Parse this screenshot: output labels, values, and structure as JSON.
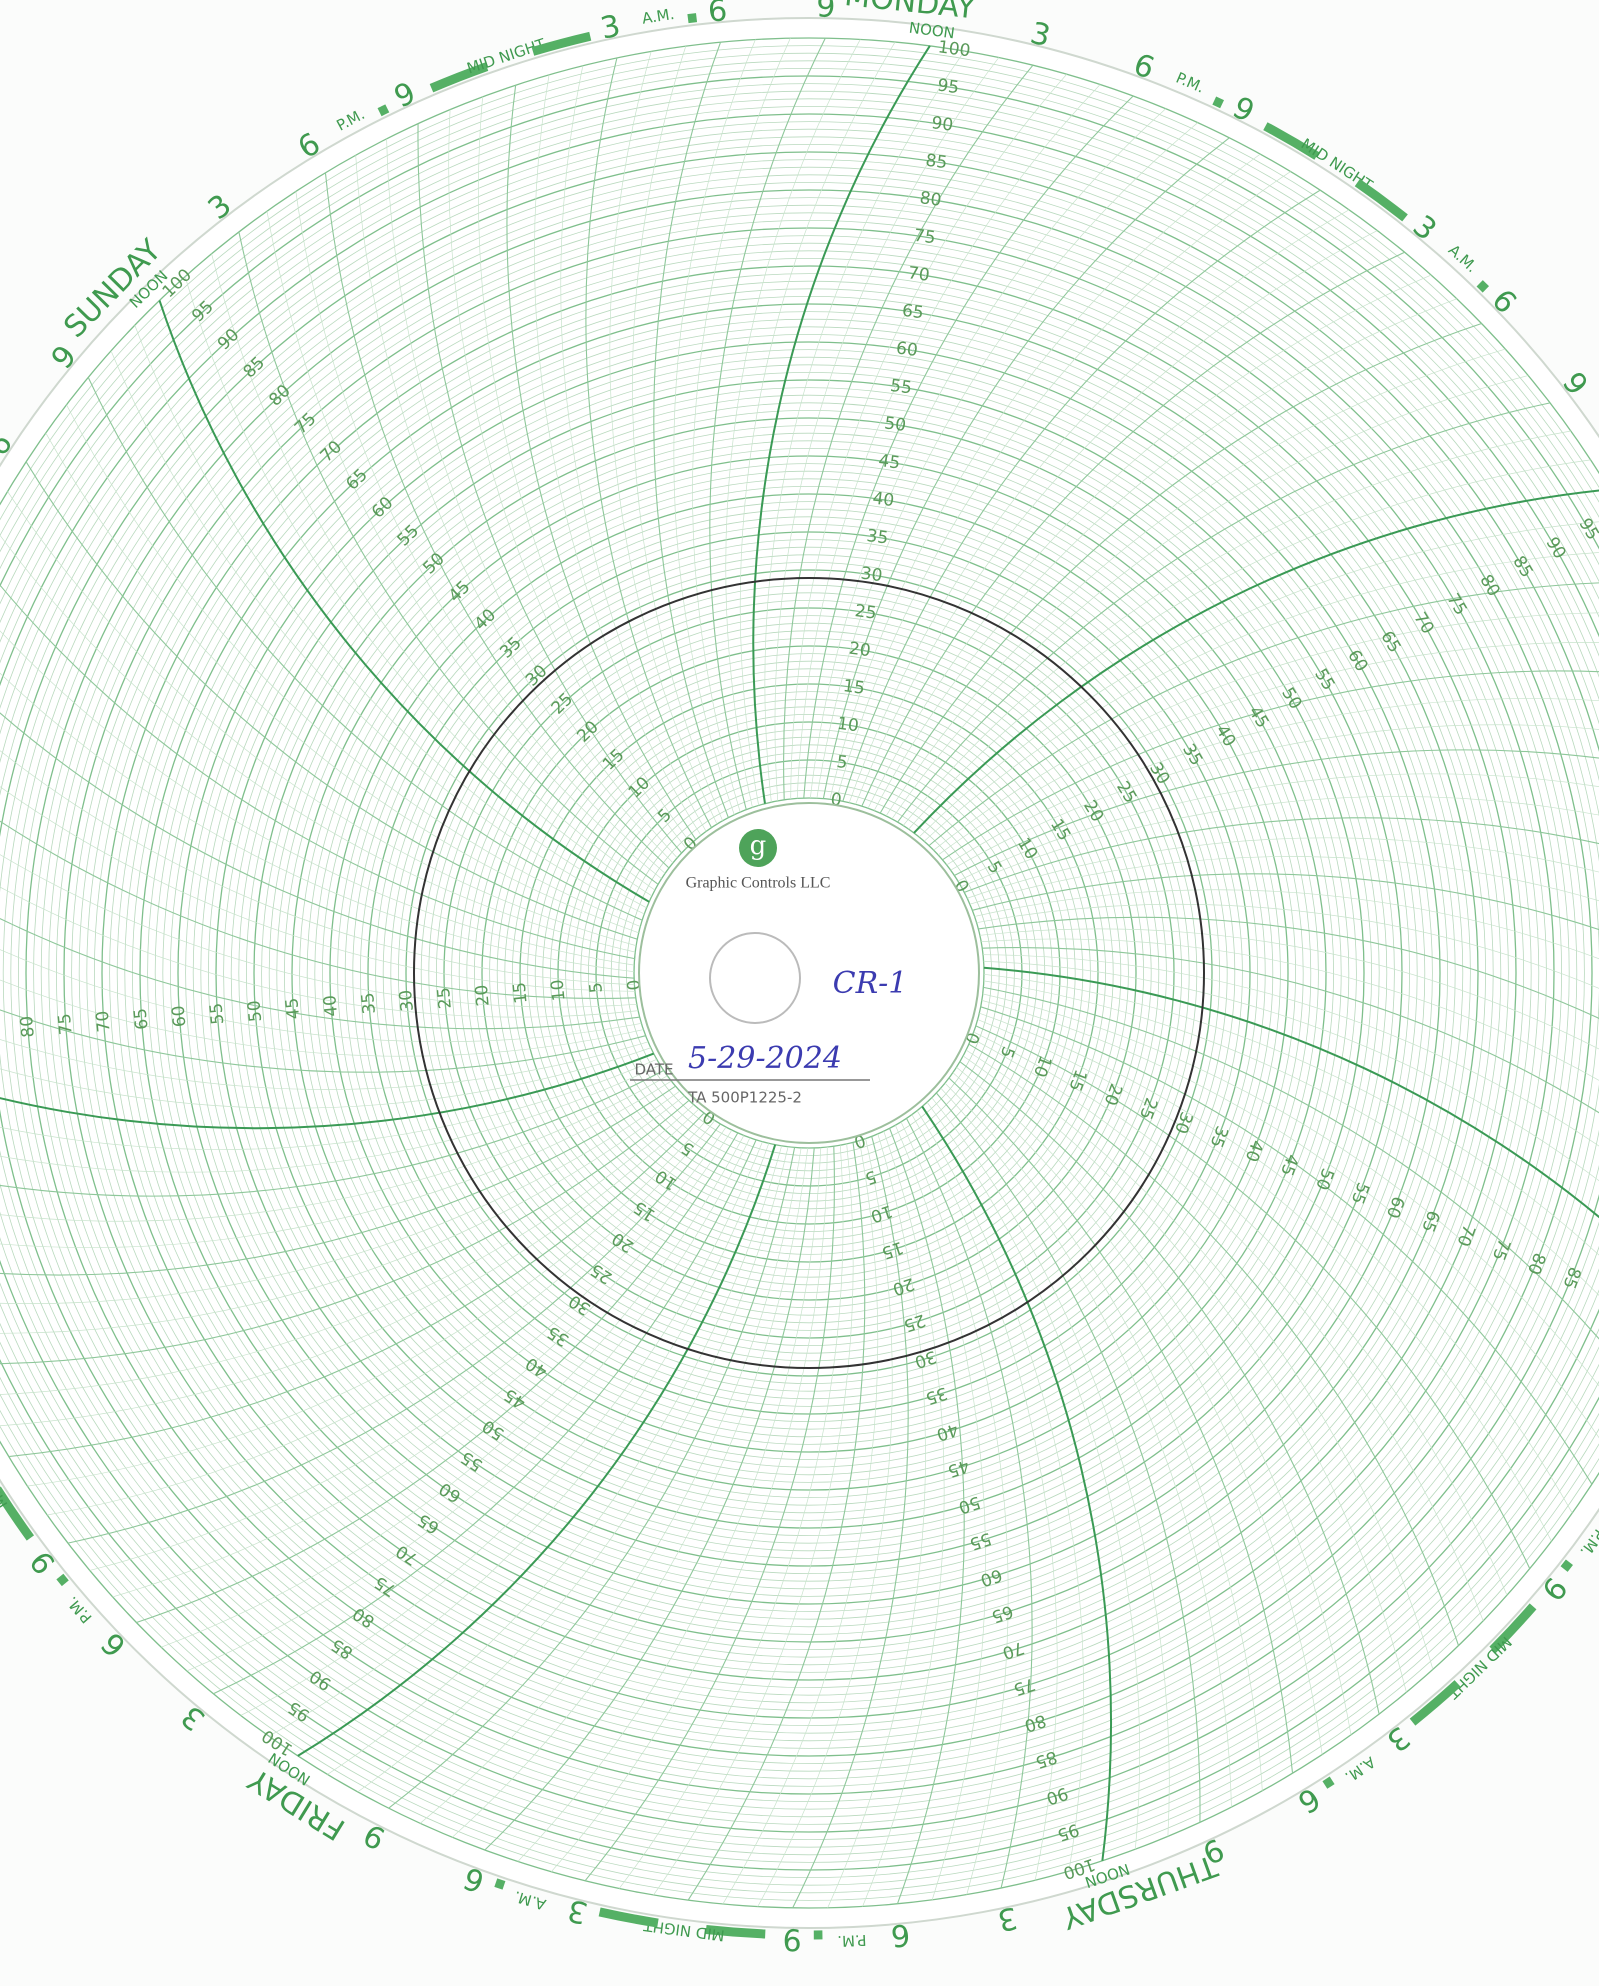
{
  "hub": {
    "logo": "g",
    "brand": "Graphic Controls LLC",
    "chart_id": "CR-1",
    "date_label": "DATE",
    "date": "5-29-2024",
    "part_number": "TA 500P1225-2"
  },
  "scale": {
    "labels": [
      0,
      5,
      10,
      15,
      20,
      25,
      30,
      35,
      40,
      45,
      50,
      55,
      60,
      65,
      70,
      75,
      80,
      85,
      90,
      95,
      100
    ]
  },
  "days": [
    {
      "name": "SUNDAY"
    },
    {
      "name": "MONDAY"
    },
    {
      "name": null
    },
    {
      "name": null
    },
    {
      "name": "THURSDAY"
    },
    {
      "name": "FRIDAY"
    },
    {
      "name": null
    }
  ],
  "day_marks": {
    "noon": "NOON",
    "midnight": "MID NIGHT",
    "pm": "P.M.",
    "am": "A.M.",
    "hours": [
      "3",
      "6",
      "9"
    ]
  }
}
